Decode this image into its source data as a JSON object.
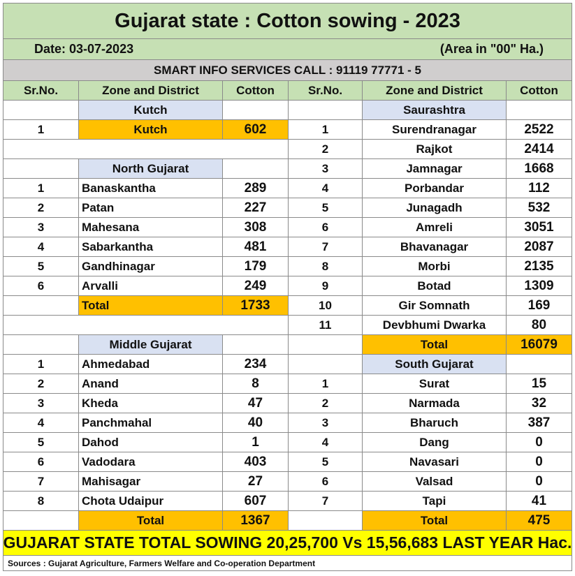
{
  "title": "Gujarat state : Cotton sowing - 2023",
  "date": "Date: 03-07-2023",
  "area_unit": "(Area in \"00\" Ha.)",
  "info": "SMART INFO SERVICES CALL : 91119 77771 - 5",
  "headers": {
    "sr": "Sr.No.",
    "zone": "Zone and District",
    "cotton": "Cotton"
  },
  "zones": {
    "kutch": "Kutch",
    "north": "North Gujarat",
    "middle": "Middle Gujarat",
    "saurashtra": "Saurashtra",
    "south": "South Gujarat"
  },
  "total_label": "Total",
  "kutch": [
    {
      "sr": "1",
      "name": "Kutch",
      "value": "602"
    }
  ],
  "north": [
    {
      "sr": "1",
      "name": "Banaskantha",
      "value": "289"
    },
    {
      "sr": "2",
      "name": "Patan",
      "value": "227"
    },
    {
      "sr": "3",
      "name": "Mahesana",
      "value": "308"
    },
    {
      "sr": "4",
      "name": "Sabarkantha",
      "value": "481"
    },
    {
      "sr": "5",
      "name": "Gandhinagar",
      "value": "179"
    },
    {
      "sr": "6",
      "name": "Arvalli",
      "value": "249"
    }
  ],
  "north_total": "1733",
  "middle": [
    {
      "sr": "1",
      "name": "Ahmedabad",
      "value": "234"
    },
    {
      "sr": "2",
      "name": "Anand",
      "value": "8"
    },
    {
      "sr": "3",
      "name": "Kheda",
      "value": "47"
    },
    {
      "sr": "4",
      "name": "Panchmahal",
      "value": "40"
    },
    {
      "sr": "5",
      "name": "Dahod",
      "value": "1"
    },
    {
      "sr": "6",
      "name": "Vadodara",
      "value": "403"
    },
    {
      "sr": "7",
      "name": "Mahisagar",
      "value": "27"
    },
    {
      "sr": "8",
      "name": "Chota Udaipur",
      "value": "607"
    }
  ],
  "middle_total": "1367",
  "saurashtra": [
    {
      "sr": "1",
      "name": "Surendranagar",
      "value": "2522"
    },
    {
      "sr": "2",
      "name": "Rajkot",
      "value": "2414"
    },
    {
      "sr": "3",
      "name": "Jamnagar",
      "value": "1668"
    },
    {
      "sr": "4",
      "name": "Porbandar",
      "value": "112"
    },
    {
      "sr": "5",
      "name": "Junagadh",
      "value": "532"
    },
    {
      "sr": "6",
      "name": "Amreli",
      "value": "3051"
    },
    {
      "sr": "7",
      "name": "Bhavanagar",
      "value": "2087"
    },
    {
      "sr": "8",
      "name": "Morbi",
      "value": "2135"
    },
    {
      "sr": "9",
      "name": "Botad",
      "value": "1309"
    },
    {
      "sr": "10",
      "name": "Gir Somnath",
      "value": "169"
    },
    {
      "sr": "11",
      "name": "Devbhumi Dwarka",
      "value": "80"
    }
  ],
  "saurashtra_total": "16079",
  "south": [
    {
      "sr": "1",
      "name": "Surat",
      "value": "15"
    },
    {
      "sr": "2",
      "name": "Narmada",
      "value": "32"
    },
    {
      "sr": "3",
      "name": "Bharuch",
      "value": "387"
    },
    {
      "sr": "4",
      "name": "Dang",
      "value": "0"
    },
    {
      "sr": "5",
      "name": "Navasari",
      "value": "0"
    },
    {
      "sr": "6",
      "name": "Valsad",
      "value": "0"
    },
    {
      "sr": "7",
      "name": "Tapi",
      "value": "41"
    }
  ],
  "south_total": "475",
  "grand_total": "GUJARAT STATE TOTAL SOWING 20,25,700 Vs 15,56,683 LAST YEAR Hac.",
  "source": "Sources : Gujarat Agriculture, Farmers Welfare and Co-operation Department"
}
